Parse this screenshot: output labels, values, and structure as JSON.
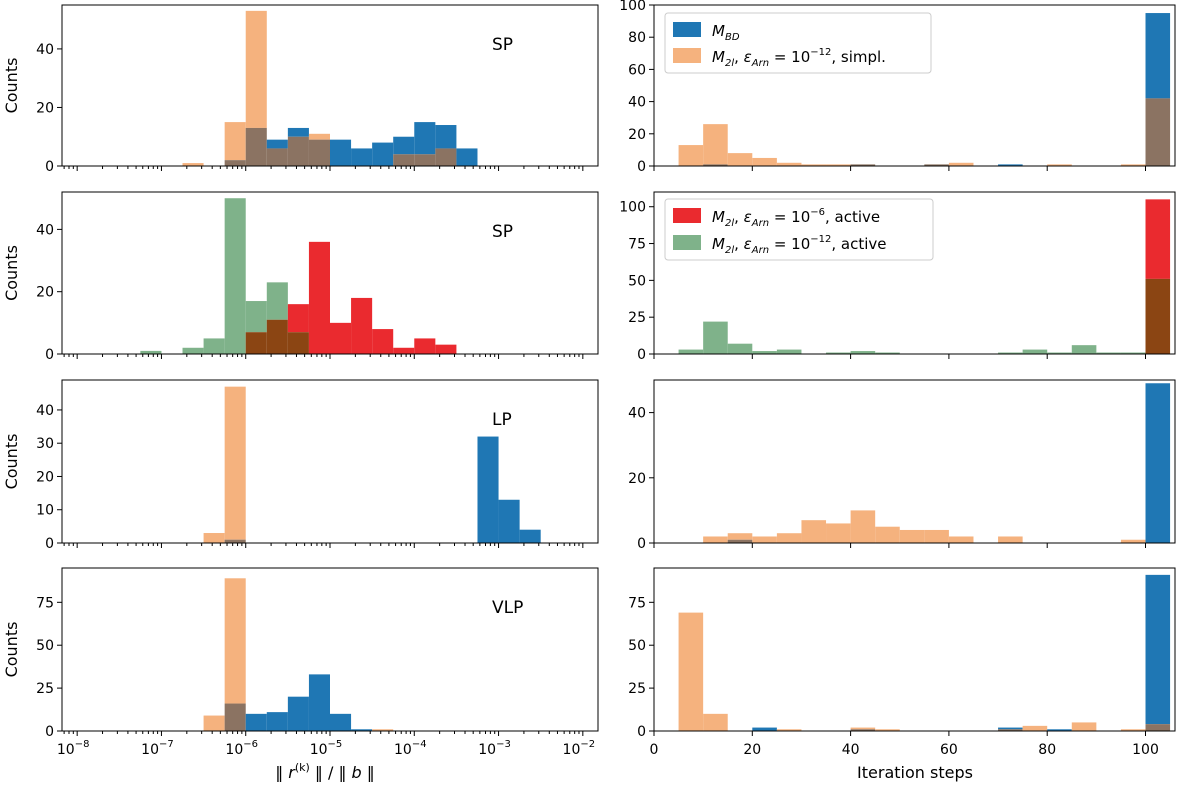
{
  "figure": {
    "left_xlabel": "‖ r(k) ‖ / ‖ b ‖",
    "right_xlabel": "Iteration steps",
    "ylabel": "Counts"
  },
  "colors": {
    "blue": "#1f77b4",
    "orange": "#f5b27e",
    "overlap_orange": "#8b7362",
    "red": "#ea2a2f",
    "green": "#7fb28a",
    "overlap_green": "#8b4513"
  },
  "legends": {
    "row0": [
      "M_BD",
      "M_2l, ε_Arn = 10^-12,  simpl."
    ],
    "row1": [
      "M_2l, ε_Arn = 10^-6,   active",
      "M_2l, ε_Arn = 10^-12,   active"
    ]
  },
  "chart_data": [
    {
      "type": "bar",
      "title": "SP",
      "ylabel": "Counts",
      "xscale": "log",
      "xlim": [
        1e-08,
        0.01
      ],
      "ylim": [
        0,
        55
      ],
      "yticks": [
        0,
        20,
        40
      ],
      "xticks": [
        "10^-8",
        "10^-7",
        "10^-6",
        "10^-5",
        "10^-4",
        "10^-3",
        "10^-2"
      ],
      "x_exponent_edges": [
        -6.75,
        -6.5,
        -6.25,
        -6.0,
        -5.75,
        -5.5,
        -5.25,
        -5.0,
        -4.75,
        -4.5,
        -4.25,
        -4.0,
        -3.75,
        -3.5,
        -3.25,
        -3.0
      ],
      "series": [
        {
          "name": "M_BD",
          "color": "blue",
          "values": [
            0,
            0,
            2,
            13,
            9,
            13,
            9,
            9,
            6,
            8,
            10,
            15,
            14,
            6,
            0
          ]
        },
        {
          "name": "M_2l, ε_Arn = 10^-12, simpl.",
          "color": "orange",
          "values": [
            1,
            0,
            15,
            53,
            6,
            10,
            11,
            0,
            0,
            0,
            4,
            4,
            6,
            0,
            0
          ]
        }
      ]
    },
    {
      "type": "bar",
      "title": "SP",
      "ylabel": "Counts",
      "xscale": "log",
      "xlim": [
        1e-08,
        0.01
      ],
      "ylim": [
        0,
        52
      ],
      "yticks": [
        0,
        20,
        40
      ],
      "xticks": [
        "10^-8",
        "10^-7",
        "10^-6",
        "10^-5",
        "10^-4",
        "10^-3",
        "10^-2"
      ],
      "x_exponent_edges": [
        -7.25,
        -7.0,
        -6.75,
        -6.5,
        -6.25,
        -6.0,
        -5.75,
        -5.5,
        -5.25,
        -5.0,
        -4.75,
        -4.5,
        -4.25,
        -4.0,
        -3.75,
        -3.5,
        -3.25,
        -3.0
      ],
      "series": [
        {
          "name": "M_2l, ε_Arn = 10^-6, active",
          "color": "red",
          "values": [
            0,
            0,
            0,
            0,
            0,
            7,
            11,
            16,
            36,
            10,
            18,
            8,
            2,
            5,
            3,
            0,
            0
          ]
        },
        {
          "name": "M_2l, ε_Arn = 10^-12, active",
          "color": "green",
          "values": [
            1,
            0,
            2,
            5,
            50,
            17,
            23,
            7,
            0,
            0,
            0,
            0,
            0,
            0,
            0,
            0,
            0
          ]
        }
      ]
    },
    {
      "type": "bar",
      "title": "LP",
      "ylabel": "Counts",
      "xscale": "log",
      "xlim": [
        1e-08,
        0.01
      ],
      "ylim": [
        0,
        49
      ],
      "yticks": [
        0,
        10,
        20,
        30,
        40
      ],
      "xticks": [
        "10^-8",
        "10^-7",
        "10^-6",
        "10^-5",
        "10^-4",
        "10^-3",
        "10^-2"
      ],
      "x_exponent_edges": [
        -6.5,
        -6.25,
        -6.0,
        -3.25,
        -3.0,
        -2.75,
        -2.5
      ],
      "series": [
        {
          "name": "M_BD",
          "color": "blue",
          "values": [
            0,
            1,
            0,
            32,
            13,
            4
          ]
        },
        {
          "name": "M_2l, ε_Arn = 10^-12, simpl.",
          "color": "orange",
          "values": [
            3,
            47,
            0,
            0,
            0,
            0
          ]
        }
      ]
    },
    {
      "type": "bar",
      "title": "VLP",
      "ylabel": "Counts",
      "xscale": "log",
      "xlim": [
        1e-08,
        0.01
      ],
      "ylim": [
        0,
        95
      ],
      "yticks": [
        0,
        25,
        50,
        75
      ],
      "xticks": [
        "10^-8",
        "10^-7",
        "10^-6",
        "10^-5",
        "10^-4",
        "10^-3",
        "10^-2"
      ],
      "x_exponent_edges": [
        -6.5,
        -6.25,
        -6.0,
        -5.75,
        -5.5,
        -5.25,
        -5.0,
        -4.75,
        -4.5,
        -4.25
      ],
      "series": [
        {
          "name": "M_BD",
          "color": "blue",
          "values": [
            0,
            16,
            10,
            11,
            20,
            33,
            10,
            1,
            0
          ]
        },
        {
          "name": "M_2l, ε_Arn = 10^-12, simpl.",
          "color": "orange",
          "values": [
            9,
            89,
            0,
            0,
            0,
            0,
            0,
            0,
            1
          ]
        }
      ]
    },
    {
      "type": "bar",
      "title": "",
      "ylabel": "",
      "xscale": "linear",
      "xlim": [
        0,
        106
      ],
      "ylim": [
        0,
        100
      ],
      "yticks": [
        0,
        20,
        40,
        60,
        80,
        100
      ],
      "xticks": [
        "0",
        "20",
        "40",
        "60",
        "80",
        "100"
      ],
      "bin_start": 5,
      "bin_width": 5,
      "series": [
        {
          "name": "M_BD",
          "color": "blue",
          "values": [
            0,
            1,
            0,
            0,
            0,
            0,
            0,
            1,
            0,
            0,
            1,
            0,
            0,
            1,
            0,
            0,
            0,
            0,
            0,
            95
          ]
        },
        {
          "name": "M_2l, ε_Arn = 10^-12, simpl.",
          "color": "orange",
          "values": [
            13,
            26,
            8,
            5,
            2,
            1,
            1,
            1,
            0,
            0,
            1,
            2,
            0,
            0,
            0,
            1,
            0,
            0,
            1,
            42
          ]
        }
      ]
    },
    {
      "type": "bar",
      "title": "",
      "ylabel": "",
      "xscale": "linear",
      "xlim": [
        0,
        106
      ],
      "ylim": [
        0,
        110
      ],
      "yticks": [
        0,
        25,
        50,
        75,
        100
      ],
      "xticks": [
        "0",
        "20",
        "40",
        "60",
        "80",
        "100"
      ],
      "bin_start": 5,
      "bin_width": 5,
      "series": [
        {
          "name": "M_2l, ε_Arn = 10^-6, active",
          "color": "red",
          "values": [
            0,
            0,
            0,
            0,
            0,
            0,
            0,
            0,
            0,
            0,
            0,
            0,
            0,
            0,
            0,
            0,
            0,
            0,
            0,
            105
          ]
        },
        {
          "name": "M_2l, ε_Arn = 10^-12, active",
          "color": "green",
          "values": [
            3,
            22,
            7,
            2,
            3,
            0,
            1,
            2,
            1,
            0,
            0,
            0,
            0,
            1,
            3,
            1,
            6,
            1,
            1,
            51
          ]
        }
      ]
    },
    {
      "type": "bar",
      "title": "",
      "ylabel": "",
      "xscale": "linear",
      "xlim": [
        0,
        106
      ],
      "ylim": [
        0,
        50
      ],
      "yticks": [
        0,
        20,
        40
      ],
      "xticks": [
        "0",
        "20",
        "40",
        "60",
        "80",
        "100"
      ],
      "bin_start": 10,
      "bin_width": 5,
      "series": [
        {
          "name": "M_BD",
          "color": "blue",
          "values": [
            0,
            1,
            0,
            0,
            0,
            0,
            0,
            0,
            0,
            0,
            0,
            0,
            0,
            0,
            0,
            0,
            0,
            0,
            49
          ]
        },
        {
          "name": "M_2l, ε_Arn = 10^-12, simpl.",
          "color": "orange",
          "values": [
            2,
            3,
            2,
            3,
            7,
            6,
            10,
            5,
            4,
            4,
            2,
            0,
            2,
            0,
            0,
            0,
            0,
            1,
            0
          ]
        }
      ]
    },
    {
      "type": "bar",
      "title": "",
      "ylabel": "",
      "xscale": "linear",
      "xlim": [
        0,
        106
      ],
      "ylim": [
        0,
        95
      ],
      "yticks": [
        0,
        25,
        50,
        75
      ],
      "xticks": [
        "0",
        "20",
        "40",
        "60",
        "80",
        "100"
      ],
      "bin_start": 5,
      "bin_width": 5,
      "series": [
        {
          "name": "M_BD",
          "color": "blue",
          "values": [
            0,
            0,
            0,
            2,
            0,
            0,
            0,
            1,
            0,
            0,
            0,
            0,
            0,
            2,
            0,
            1,
            0,
            0,
            0,
            91
          ]
        },
        {
          "name": "M_2l, ε_Arn = 10^-12, simpl.",
          "color": "orange",
          "values": [
            69,
            10,
            0,
            0,
            1,
            0,
            0,
            2,
            1,
            0,
            0,
            0,
            0,
            1,
            3,
            0,
            5,
            0,
            1,
            4
          ]
        }
      ]
    }
  ]
}
